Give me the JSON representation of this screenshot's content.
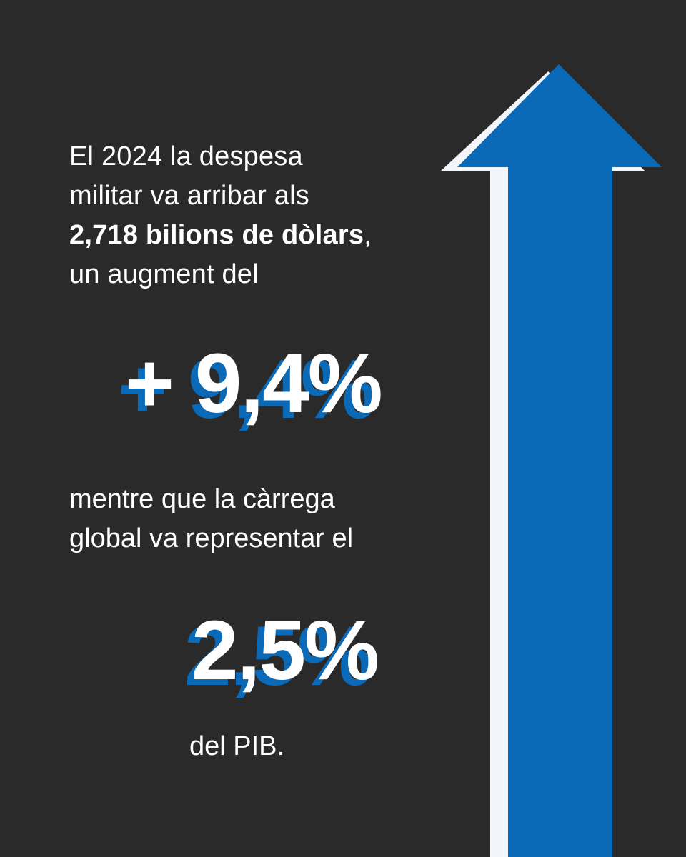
{
  "intro": {
    "line1": "El 2024 la despesa",
    "line2": "militar va arribar als",
    "line3_bold": "2,718 bilions de dòlars",
    "line3_rest": ",",
    "line4": "un augment del"
  },
  "stat_increase": "+ 9,4%",
  "middle": {
    "line1": "mentre que la càrrega",
    "line2": "global va representar el"
  },
  "stat_gdp": "2,5%",
  "closing": "del PIB.",
  "colors": {
    "background": "#2a2a2a",
    "accent_blue": "#0a6ab8",
    "arrow_outline": "#f2f6fb",
    "text": "#ffffff"
  }
}
